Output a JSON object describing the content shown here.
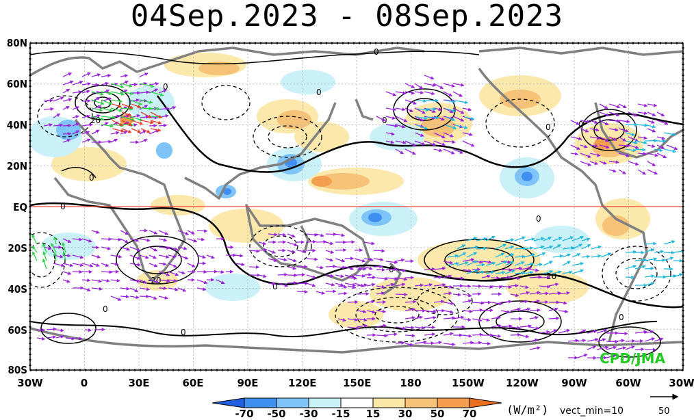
{
  "title": "04Sep.2023 - 08Sep.2023",
  "lat_labels": [
    "80N",
    "60N",
    "40N",
    "20N",
    "EQ",
    "20S",
    "40S",
    "60S",
    "80S"
  ],
  "lon_labels": [
    "30W",
    "0",
    "30E",
    "60E",
    "90E",
    "120E",
    "150E",
    "180",
    "150W",
    "120W",
    "90W",
    "60W",
    "30W"
  ],
  "colorbar": {
    "ticks": [
      "-70",
      "-50",
      "-30",
      "-15",
      "15",
      "30",
      "50",
      "70"
    ],
    "colors": [
      "#1f5fe0",
      "#3f8ff0",
      "#7fc4f8",
      "#c9f1f7",
      "#ffffff",
      "#fbe7a6",
      "#f6c277",
      "#f39d4f",
      "#ea6f1f"
    ],
    "units": "(W/m²)",
    "vector_min": "vect_min=10",
    "ref_vector": "50"
  },
  "credit": "CPD/JMA",
  "contour_labels": [
    "0",
    "20",
    "-20"
  ],
  "colors": {
    "equator_line": "#ff3b3b",
    "coast": "#808080",
    "vector_purple": "#9a22dd",
    "vector_cyan": "#1fb8e0",
    "vector_green": "#2fd04a",
    "vector_red": "#e83a2a"
  }
}
